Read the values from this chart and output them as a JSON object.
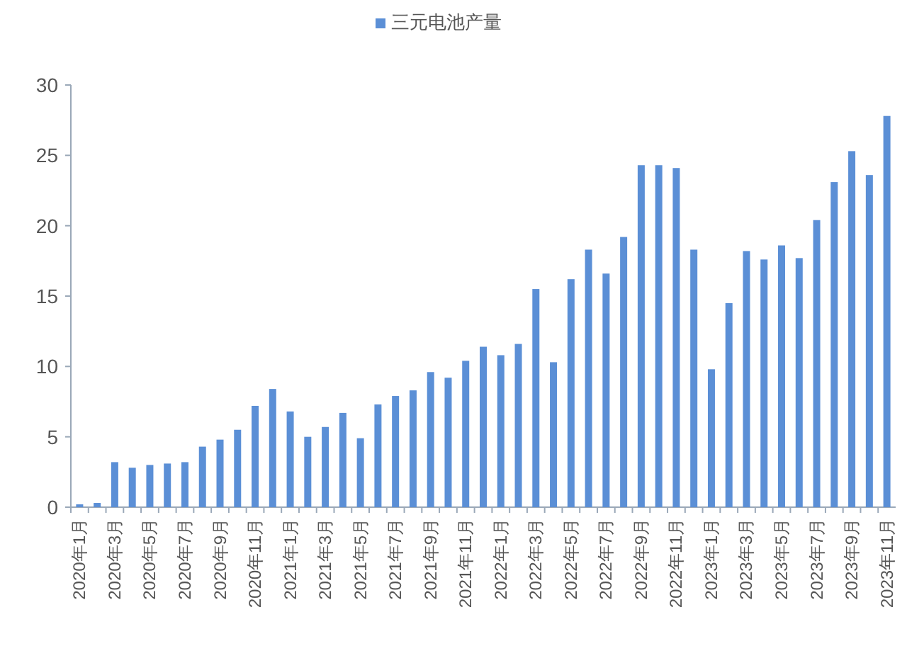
{
  "chart_data": {
    "type": "bar",
    "categories": [
      "2020年1月",
      null,
      "2020年3月",
      null,
      "2020年5月",
      null,
      "2020年7月",
      null,
      "2020年9月",
      null,
      "2020年11月",
      null,
      "2021年1月",
      null,
      "2021年3月",
      null,
      "2021年5月",
      null,
      "2021年7月",
      null,
      "2021年9月",
      null,
      "2021年11月",
      null,
      "2022年1月",
      null,
      "2022年3月",
      null,
      "2022年5月",
      null,
      "2022年7月",
      null,
      "2022年9月",
      null,
      "2022年11月",
      null,
      "2023年1月",
      null,
      "2023年3月",
      null,
      "2023年5月",
      null,
      "2023年7月",
      null,
      "2023年9月",
      null,
      "2023年11月"
    ],
    "series": [
      {
        "name": "三元电池产量",
        "color": "#5b8fd6",
        "values": [
          0.2,
          0.3,
          3.2,
          2.8,
          3.0,
          3.1,
          3.2,
          4.3,
          4.8,
          5.5,
          7.2,
          8.4,
          6.8,
          5.0,
          5.7,
          6.7,
          4.9,
          7.3,
          7.9,
          8.3,
          9.6,
          9.2,
          10.4,
          11.4,
          10.8,
          11.6,
          15.5,
          10.3,
          16.2,
          18.3,
          16.6,
          19.2,
          24.3,
          24.3,
          24.1,
          18.3,
          9.8,
          14.5,
          18.2,
          17.6,
          18.6,
          17.7,
          20.4,
          23.1,
          25.3,
          23.6,
          27.8
        ]
      }
    ],
    "ylim": [
      0,
      30
    ],
    "yticks": [
      0,
      5,
      10,
      15,
      20,
      25,
      30
    ],
    "grid": false,
    "legend": "top"
  }
}
